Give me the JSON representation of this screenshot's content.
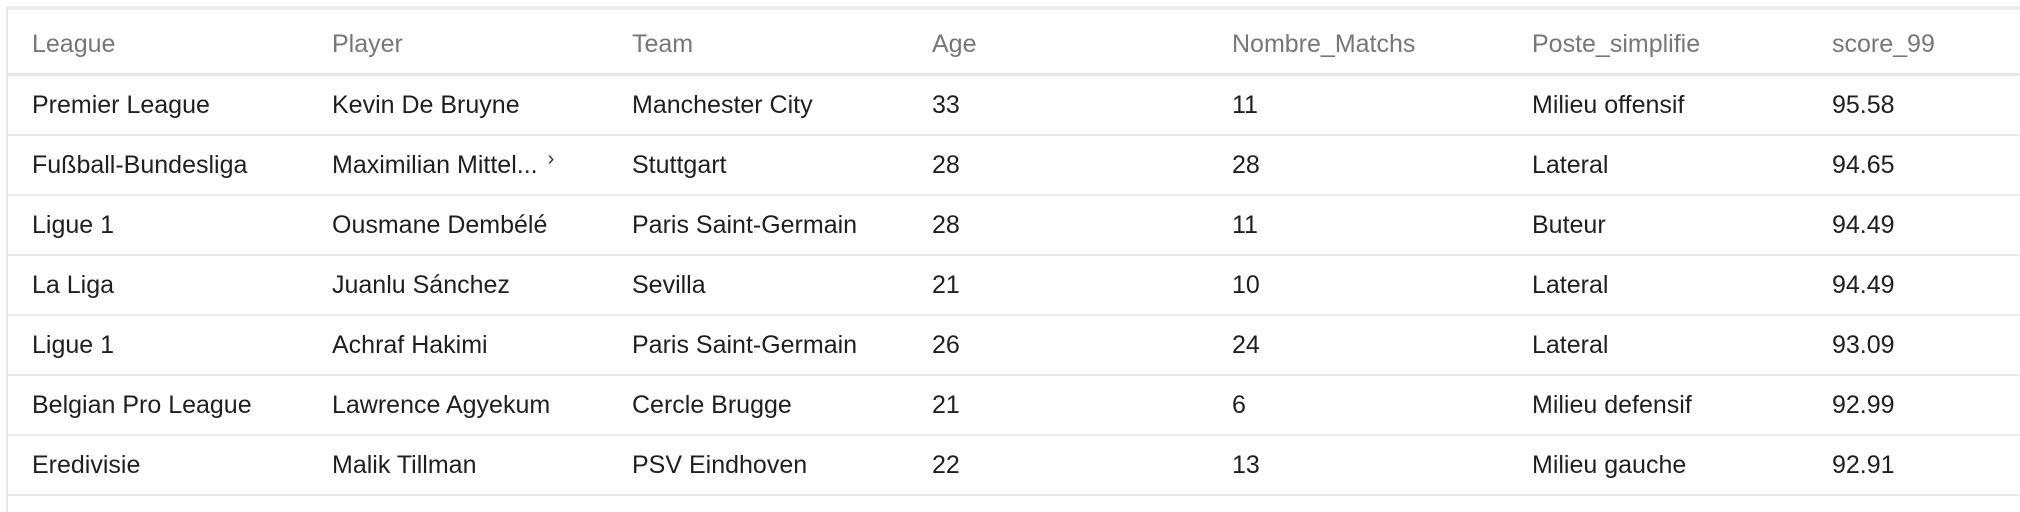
{
  "table": {
    "columns": [
      "League",
      "Player",
      "Team",
      "Age",
      "Nombre_Matchs",
      "Poste_simplifie",
      "score_99"
    ],
    "rows": [
      [
        "Premier League",
        "Kevin De Bruyne",
        "Manchester City",
        "33",
        "11",
        "Milieu offensif",
        "95.58"
      ],
      [
        "Fußball-Bundesliga",
        "Maximilian Mittel...",
        "Stuttgart",
        "28",
        "28",
        "Lateral",
        "94.65"
      ],
      [
        "Ligue 1",
        "Ousmane Dembélé",
        "Paris Saint-Germain",
        "28",
        "11",
        "Buteur",
        "94.49"
      ],
      [
        "La Liga",
        "Juanlu Sánchez",
        "Sevilla",
        "21",
        "10",
        "Lateral",
        "94.49"
      ],
      [
        "Ligue 1",
        "Achraf Hakimi",
        "Paris Saint-Germain",
        "26",
        "24",
        "Lateral",
        "93.09"
      ],
      [
        "Belgian Pro League",
        "Lawrence Agyekum",
        "Cercle Brugge",
        "21",
        "6",
        "Milieu defensif",
        "92.99"
      ],
      [
        "Eredivisie",
        "Malik Tillman",
        "PSV Eindhoven",
        "22",
        "13",
        "Milieu gauche",
        "92.91"
      ]
    ],
    "expand_glyph": "›",
    "expand_icon": "chevron-right-icon"
  }
}
